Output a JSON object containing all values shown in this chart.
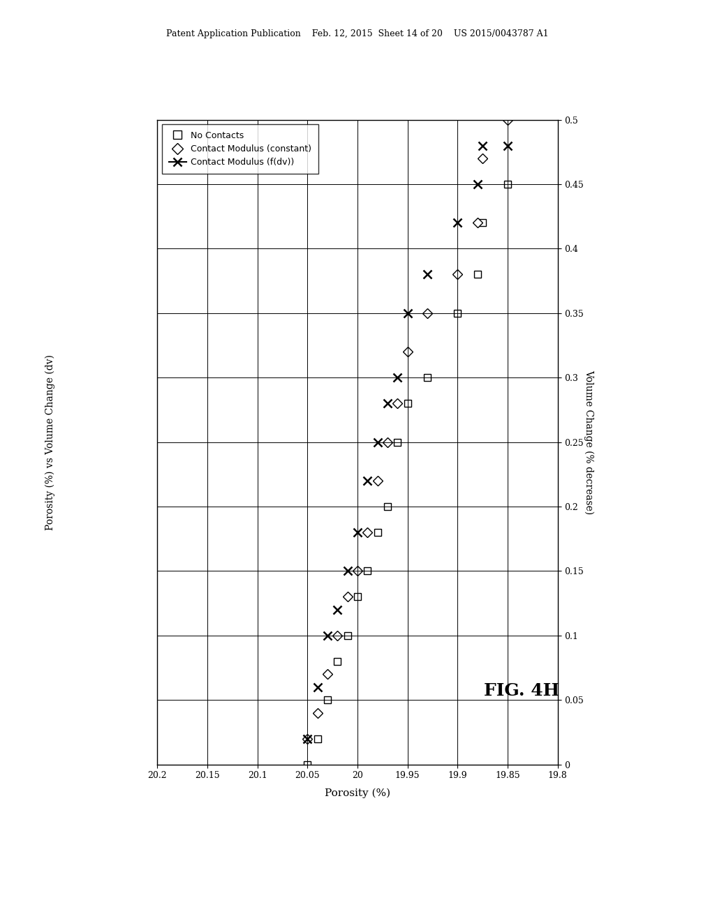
{
  "title_left": "Porosity (%) vs Volume Change (dv)",
  "xlabel": "Porosity (%)",
  "ylabel_right": "Volume Change (% decrease)",
  "fig_label": "FIG. 4H",
  "header_text": "Patent Application Publication    Feb. 12, 2015  Sheet 14 of 20    US 2015/0043787 A1",
  "xlim": [
    20.2,
    19.8
  ],
  "xticks": [
    20.2,
    20.15,
    20.1,
    20.05,
    20.0,
    19.95,
    19.9,
    19.85,
    19.8
  ],
  "xticklabels": [
    "20.2",
    "20.15",
    "20.1",
    "20.05",
    "20",
    "19.95",
    "19.9",
    "19.85",
    "19.8"
  ],
  "ylim": [
    0,
    0.5
  ],
  "yticks": [
    0,
    0.05,
    0.1,
    0.15,
    0.2,
    0.25,
    0.3,
    0.35,
    0.4,
    0.45,
    0.5
  ],
  "yticklabels": [
    "0",
    "0.05",
    "0.1",
    "0.15",
    "0.2",
    "0.25",
    "0.3",
    "0.35",
    "0.4",
    "0.45",
    "0.5"
  ],
  "no_contacts_x": [
    20.05,
    20.04,
    20.03,
    20.02,
    20.01,
    20.0,
    19.99,
    19.98,
    19.97,
    19.96,
    19.95,
    19.93,
    19.9,
    19.88,
    19.875,
    19.85
  ],
  "no_contacts_y": [
    0.0,
    0.02,
    0.05,
    0.08,
    0.1,
    0.13,
    0.15,
    0.18,
    0.2,
    0.25,
    0.28,
    0.3,
    0.35,
    0.38,
    0.42,
    0.45
  ],
  "contact_constant_x": [
    20.05,
    20.04,
    20.03,
    20.02,
    20.01,
    20.0,
    19.99,
    19.98,
    19.97,
    19.96,
    19.95,
    19.93,
    19.9,
    19.88,
    19.875,
    19.85
  ],
  "contact_constant_y": [
    0.02,
    0.04,
    0.07,
    0.1,
    0.13,
    0.15,
    0.18,
    0.22,
    0.25,
    0.28,
    0.32,
    0.35,
    0.38,
    0.42,
    0.47,
    0.5
  ],
  "contact_fdv_x": [
    20.05,
    20.04,
    20.03,
    20.02,
    20.01,
    20.0,
    19.99,
    19.98,
    19.97,
    19.96,
    19.95,
    19.93,
    19.9,
    19.88,
    19.875,
    19.85
  ],
  "contact_fdv_y": [
    0.02,
    0.06,
    0.1,
    0.12,
    0.15,
    0.18,
    0.22,
    0.25,
    0.28,
    0.3,
    0.35,
    0.38,
    0.42,
    0.45,
    0.48,
    0.48
  ],
  "background_color": "#ffffff",
  "marker_color": "#000000",
  "grid_color": "#000000",
  "grid_linewidth": 0.7
}
